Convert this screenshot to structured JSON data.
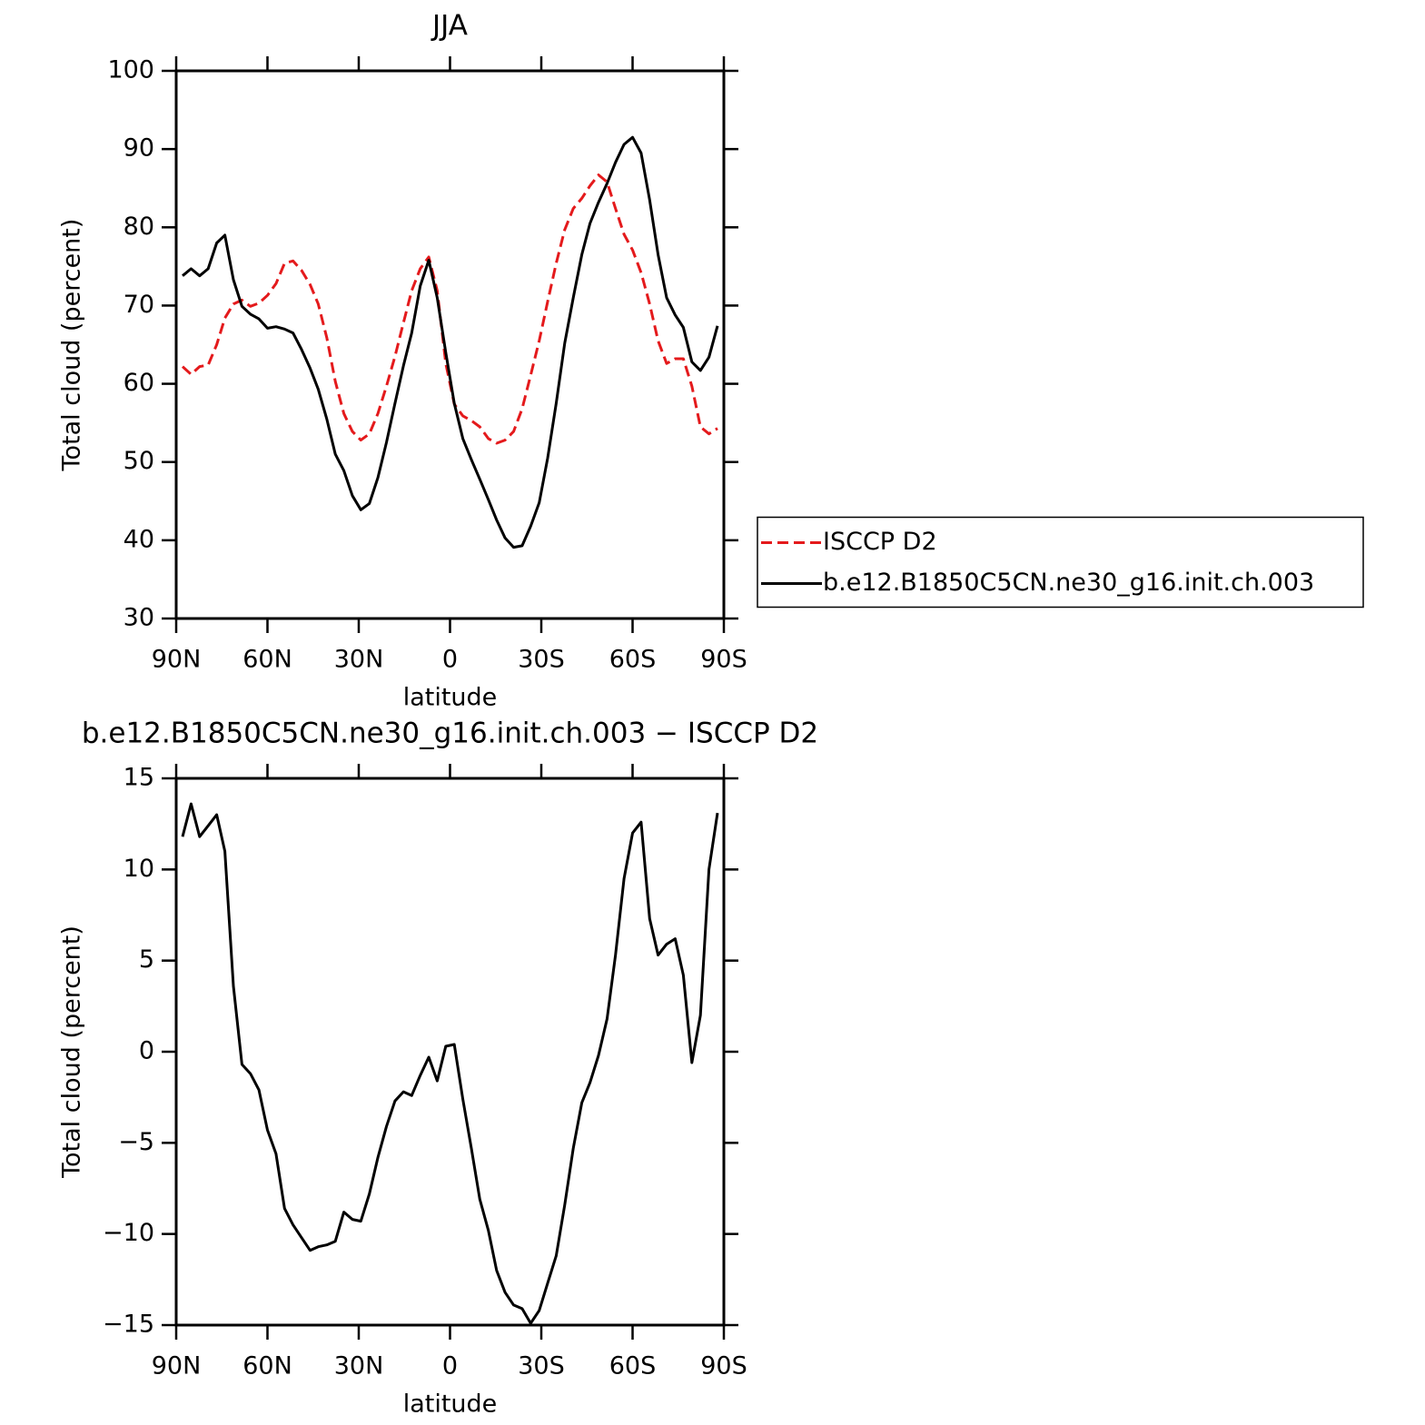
{
  "chart_data": [
    {
      "type": "line",
      "title": "JJA",
      "x_label": "latitude",
      "y_label": "Total cloud (percent)",
      "x": [
        87.9,
        85.1,
        82.3,
        79.5,
        76.7,
        74.0,
        71.2,
        68.4,
        65.6,
        62.8,
        60.0,
        57.2,
        54.4,
        51.6,
        48.8,
        46.0,
        43.3,
        40.5,
        37.7,
        34.9,
        32.1,
        29.3,
        26.5,
        23.7,
        20.9,
        18.1,
        15.3,
        12.6,
        9.8,
        7.0,
        4.2,
        1.4,
        -1.4,
        -4.2,
        -7.0,
        -9.8,
        -12.6,
        -15.3,
        -18.1,
        -20.9,
        -23.7,
        -26.5,
        -29.3,
        -32.1,
        -34.9,
        -37.7,
        -40.5,
        -43.3,
        -46.0,
        -48.8,
        -51.6,
        -54.4,
        -57.2,
        -60.0,
        -62.8,
        -65.6,
        -68.4,
        -71.2,
        -74.0,
        -76.7,
        -79.5,
        -82.3,
        -85.1,
        -87.9
      ],
      "series": [
        {
          "name": "ISCCP D2",
          "color": "#e41a1c",
          "style": "dashed",
          "values": [
            62.2,
            61.2,
            62.2,
            62.4,
            65.0,
            68.4,
            70.2,
            70.7,
            69.9,
            70.3,
            71.3,
            72.8,
            75.4,
            75.7,
            74.5,
            72.7,
            70.2,
            65.9,
            60.3,
            56.2,
            53.9,
            52.8,
            53.6,
            56.2,
            59.7,
            63.5,
            67.8,
            71.9,
            74.7,
            76.2,
            71.9,
            62.6,
            57.4,
            55.9,
            55.3,
            54.5,
            53.0,
            52.4,
            52.8,
            53.9,
            56.8,
            61.1,
            65.5,
            70.5,
            75.4,
            79.7,
            82.4,
            83.7,
            85.3,
            86.7,
            85.8,
            82.4,
            79.1,
            77.1,
            74.2,
            70.2,
            65.5,
            62.6,
            63.2,
            63.2,
            59.7,
            54.5,
            53.6,
            54.3
          ]
        },
        {
          "name": "b.e12.B1850C5CN.ne30_g16.init.ch.003",
          "color": "#000000",
          "style": "solid",
          "values": [
            73.8,
            74.7,
            73.8,
            74.7,
            78.0,
            79.0,
            73.3,
            69.9,
            68.9,
            68.3,
            67.1,
            67.3,
            67.0,
            66.5,
            64.4,
            62.0,
            59.3,
            55.5,
            51.0,
            48.9,
            45.7,
            43.9,
            44.7,
            48.0,
            52.5,
            57.5,
            62.3,
            66.5,
            72.5,
            75.8,
            71.0,
            64.0,
            57.5,
            53.0,
            50.3,
            47.8,
            45.2,
            42.6,
            40.3,
            39.1,
            39.3,
            41.8,
            44.8,
            50.5,
            57.5,
            65.2,
            71.0,
            76.5,
            80.5,
            83.2,
            85.6,
            88.3,
            90.6,
            91.5,
            89.5,
            83.5,
            76.5,
            71.0,
            68.8,
            67.2,
            62.8,
            61.7,
            63.4,
            67.4
          ]
        }
      ],
      "xlim": [
        90,
        -90
      ],
      "xticks": [
        {
          "value": 90,
          "label": "90N"
        },
        {
          "value": 60,
          "label": "60N"
        },
        {
          "value": 30,
          "label": "30N"
        },
        0,
        {
          "value": -30,
          "label": "30S"
        },
        {
          "value": -60,
          "label": "60S"
        },
        {
          "value": -90,
          "label": "90S"
        }
      ],
      "ylim": [
        30,
        100
      ],
      "yticks": [
        30,
        40,
        50,
        60,
        70,
        80,
        90,
        100
      ],
      "legend": "right"
    },
    {
      "type": "line",
      "title": "b.e12.B1850C5CN.ne30_g16.init.ch.003 − ISCCP D2",
      "x_label": "latitude",
      "y_label": "Total cloud (percent)",
      "x": [
        87.9,
        85.1,
        82.3,
        79.5,
        76.7,
        74.0,
        71.2,
        68.4,
        65.6,
        62.8,
        60.0,
        57.2,
        54.4,
        51.6,
        48.8,
        46.0,
        43.3,
        40.5,
        37.7,
        34.9,
        32.1,
        29.3,
        26.5,
        23.7,
        20.9,
        18.1,
        15.3,
        12.6,
        9.8,
        7.0,
        4.2,
        1.4,
        -1.4,
        -4.2,
        -7.0,
        -9.8,
        -12.6,
        -15.3,
        -18.1,
        -20.9,
        -23.7,
        -26.5,
        -29.3,
        -32.1,
        -34.9,
        -37.7,
        -40.5,
        -43.3,
        -46.0,
        -48.8,
        -51.6,
        -54.4,
        -57.2,
        -60.0,
        -62.8,
        -65.6,
        -68.4,
        -71.2,
        -74.0,
        -76.7,
        -79.5,
        -82.3,
        -85.1,
        -87.9
      ],
      "values": [
        11.8,
        13.6,
        11.8,
        12.4,
        13.0,
        11.0,
        3.6,
        -0.7,
        -1.2,
        -2.1,
        -4.3,
        -5.6,
        -8.6,
        -9.5,
        -10.2,
        -10.9,
        -10.7,
        -10.6,
        -10.4,
        -8.8,
        -9.2,
        -9.3,
        -7.8,
        -5.8,
        -4.1,
        -2.7,
        -2.2,
        -2.4,
        -1.3,
        -0.3,
        -1.6,
        0.3,
        0.4,
        -2.6,
        -5.3,
        -8.1,
        -9.8,
        -12.0,
        -13.2,
        -13.9,
        -14.1,
        -14.9,
        -14.2,
        -12.7,
        -11.2,
        -8.4,
        -5.3,
        -2.8,
        -1.7,
        -0.2,
        1.8,
        5.3,
        9.5,
        12.0,
        12.6,
        7.3,
        5.3,
        5.9,
        6.2,
        4.2,
        -0.6,
        2.0,
        10.0,
        13.1
      ],
      "color": "#000000",
      "xlim": [
        90,
        -90
      ],
      "xticks": [
        {
          "value": 90,
          "label": "90N"
        },
        {
          "value": 60,
          "label": "60N"
        },
        {
          "value": 30,
          "label": "30N"
        },
        0,
        {
          "value": -30,
          "label": "30S"
        },
        {
          "value": -60,
          "label": "60S"
        },
        {
          "value": -90,
          "label": "90S"
        }
      ],
      "ylim": [
        -15,
        15
      ],
      "yticks": [
        {
          "value": -15,
          "label": "−15"
        },
        {
          "value": -10,
          "label": "−10"
        },
        {
          "value": -5,
          "label": "−5"
        },
        0,
        5,
        10,
        15
      ]
    }
  ]
}
